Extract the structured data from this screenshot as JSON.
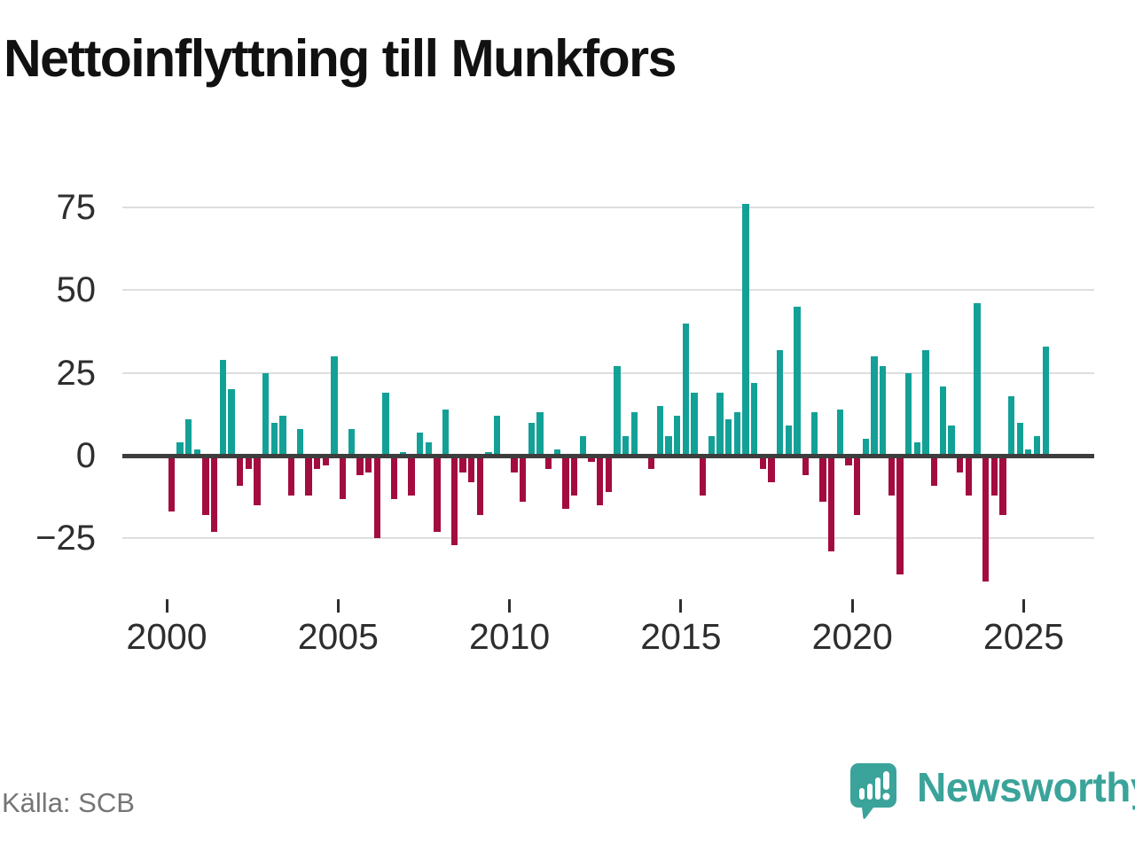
{
  "title": "Nettoinflyttning till Munkfors",
  "source": "Källa: SCB",
  "logo": {
    "text": "Newsworthy"
  },
  "colors": {
    "positive": "#13a197",
    "negative": "#a30c3f",
    "zero_line": "#3d3d3d",
    "gridline": "#dedede",
    "logo_teal": "#3aa39a"
  },
  "chart_data": {
    "type": "bar",
    "title": "Nettoinflyttning till Munkfors",
    "xlabel": "",
    "ylabel": "",
    "frequency": "quarterly",
    "x_start_year": 2000,
    "x_end_label": "2025 Q3",
    "values": [
      -17,
      4,
      11,
      2,
      -18,
      -23,
      29,
      20,
      -9,
      -4,
      -15,
      25,
      10,
      12,
      -12,
      8,
      -12,
      -4,
      -3,
      30,
      -13,
      8,
      -6,
      -5,
      -25,
      19,
      -13,
      1,
      -12,
      7,
      4,
      -23,
      14,
      -27,
      -5,
      -8,
      -18,
      1,
      12,
      0,
      -5,
      -14,
      10,
      13,
      -4,
      2,
      -16,
      -12,
      6,
      -2,
      -15,
      -11,
      27,
      6,
      13,
      0,
      -4,
      15,
      6,
      12,
      40,
      19,
      -12,
      6,
      19,
      11,
      13,
      76,
      22,
      -4,
      -8,
      32,
      9,
      45,
      -6,
      13,
      -14,
      -29,
      14,
      -3,
      -18,
      5,
      30,
      27,
      -12,
      -36,
      25,
      4,
      32,
      -9,
      21,
      9,
      -5,
      -12,
      46,
      -38,
      -12,
      -18,
      18,
      10,
      2,
      6,
      33
    ],
    "y_ticks": [
      75,
      50,
      25,
      0,
      -25
    ],
    "y_tick_labels": [
      "75",
      "50",
      "25",
      "0",
      "−25"
    ],
    "x_tick_labels": [
      "2000",
      "2005",
      "2010",
      "2015",
      "2020",
      "2025"
    ],
    "ylim": [
      -40,
      80
    ],
    "grid": "horizontal",
    "legend": "none"
  }
}
